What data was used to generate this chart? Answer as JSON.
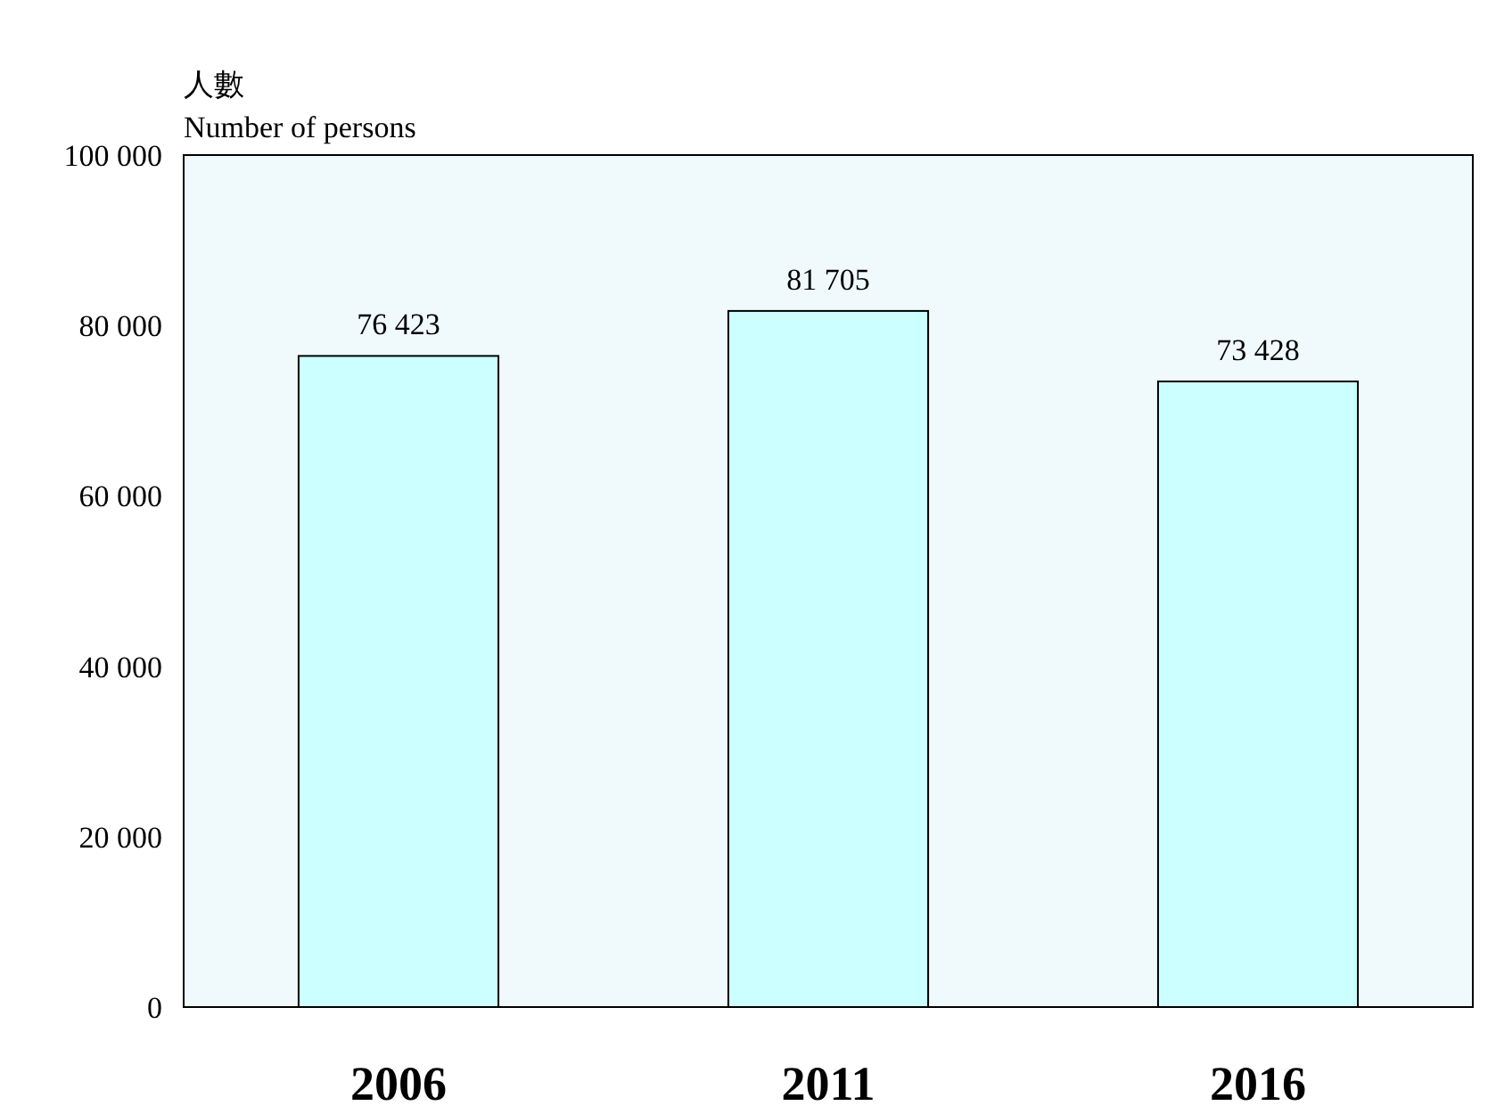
{
  "chart_data": {
    "type": "bar",
    "ylabel": "人數\nNumber of persons",
    "categories": [
      "2006",
      "2011",
      "2016"
    ],
    "values": [
      76423,
      81705,
      73428
    ],
    "value_labels": [
      "76 423",
      "81 705",
      "73 428"
    ],
    "color": "#ccffff",
    "ylim": [
      0,
      100000
    ],
    "yticks": [
      0,
      {
        "value": 20000,
        "label": "20 000"
      },
      {
        "value": 40000,
        "label": "40 000"
      },
      {
        "value": 60000,
        "label": "60 000"
      },
      {
        "value": 80000,
        "label": "80 000"
      },
      {
        "value": 100000,
        "label": "100 000"
      }
    ],
    "grid": false
  }
}
